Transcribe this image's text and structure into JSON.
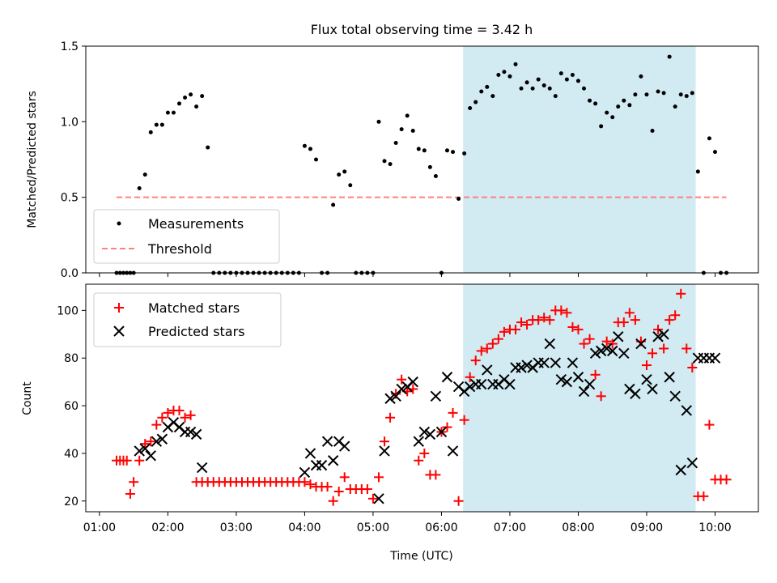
{
  "title": "Flux total observing time = 3.42 h",
  "colors": {
    "measurement": "#000000",
    "threshold": "#ff8080",
    "matched": "#ff0000",
    "predicted": "#000000",
    "shade": "#add8e6"
  },
  "top": {
    "ylabel": "Matched/Predicted stars",
    "yticks": [
      "0.0",
      "0.5",
      "1.0",
      "1.5"
    ],
    "legend": {
      "measurements": "Measurements",
      "threshold": "Threshold"
    }
  },
  "bottom": {
    "ylabel": "Count",
    "xlabel": "Time (UTC)",
    "yticks": [
      "20",
      "40",
      "60",
      "80",
      "100"
    ],
    "xticks": [
      "01:00",
      "02:00",
      "03:00",
      "04:00",
      "05:00",
      "06:00",
      "07:00",
      "08:00",
      "09:00",
      "10:00"
    ],
    "legend": {
      "matched": "Matched stars",
      "predicted": "Predicted stars"
    }
  },
  "chart_data": [
    {
      "type": "scatter",
      "title": "Flux total observing time = 3.42 h",
      "xlabel": "",
      "ylabel": "Matched/Predicted stars",
      "ylim": [
        0,
        1.5
      ],
      "xlim": [
        "00:48",
        "10:38"
      ],
      "shaded_region": [
        "06:19",
        "09:43"
      ],
      "threshold": 0.5,
      "threshold_x": [
        "01:15",
        "10:10"
      ],
      "legend_position": "lower-left",
      "series": [
        {
          "name": "Measurements",
          "x": [
            "01:15",
            "01:18",
            "01:21",
            "01:24",
            "01:27",
            "01:30",
            "01:35",
            "01:40",
            "01:45",
            "01:50",
            "01:55",
            "02:00",
            "02:05",
            "02:10",
            "02:15",
            "02:20",
            "02:25",
            "02:30",
            "02:35",
            "02:40",
            "02:45",
            "02:50",
            "02:55",
            "03:00",
            "03:05",
            "03:10",
            "03:15",
            "03:20",
            "03:25",
            "03:30",
            "03:35",
            "03:40",
            "03:45",
            "03:50",
            "03:55",
            "04:00",
            "04:05",
            "04:10",
            "04:15",
            "04:20",
            "04:25",
            "04:30",
            "04:35",
            "04:40",
            "04:45",
            "04:50",
            "04:55",
            "05:00",
            "05:05",
            "05:10",
            "05:15",
            "05:20",
            "05:25",
            "05:30",
            "05:35",
            "05:40",
            "05:45",
            "05:50",
            "05:55",
            "06:00",
            "06:05",
            "06:10",
            "06:15",
            "06:20",
            "06:25",
            "06:30",
            "06:35",
            "06:40",
            "06:45",
            "06:50",
            "06:55",
            "07:00",
            "07:05",
            "07:10",
            "07:15",
            "07:20",
            "07:25",
            "07:30",
            "07:35",
            "07:40",
            "07:45",
            "07:50",
            "07:55",
            "08:00",
            "08:05",
            "08:10",
            "08:15",
            "08:20",
            "08:25",
            "08:30",
            "08:35",
            "08:40",
            "08:45",
            "08:50",
            "08:55",
            "09:00",
            "09:05",
            "09:10",
            "09:15",
            "09:20",
            "09:25",
            "09:30",
            "09:35",
            "09:40",
            "09:45",
            "09:50",
            "09:55",
            "10:00",
            "10:05",
            "10:10"
          ],
          "y": [
            0,
            0,
            0,
            0,
            0,
            0,
            0.56,
            0.65,
            0.93,
            0.98,
            0.98,
            1.06,
            1.06,
            1.12,
            1.16,
            1.18,
            1.1,
            1.17,
            0.83,
            0,
            0,
            0,
            0,
            0,
            0,
            0,
            0,
            0,
            0,
            0,
            0,
            0,
            0,
            0,
            0,
            0.84,
            0.82,
            0.75,
            0,
            0,
            0.45,
            0.65,
            0.67,
            0.58,
            0,
            0,
            0,
            0,
            1.0,
            0.74,
            0.72,
            0.86,
            0.95,
            1.04,
            0.94,
            0.82,
            0.81,
            0.7,
            0.64,
            0,
            0.81,
            0.8,
            0.49,
            0.79,
            1.09,
            1.13,
            1.2,
            1.23,
            1.17,
            1.31,
            1.33,
            1.3,
            1.38,
            1.22,
            1.26,
            1.22,
            1.28,
            1.24,
            1.22,
            1.17,
            1.32,
            1.28,
            1.31,
            1.27,
            1.22,
            1.14,
            1.12,
            0.97,
            1.06,
            1.03,
            1.1,
            1.14,
            1.11,
            1.18,
            1.3,
            1.18,
            0.94,
            1.2,
            1.19,
            1.43,
            1.1,
            1.18,
            1.17,
            1.19,
            0.67,
            0,
            0.89,
            0.8,
            0,
            0
          ]
        }
      ]
    },
    {
      "type": "scatter",
      "xlabel": "Time (UTC)",
      "ylabel": "Count",
      "ylim": [
        15.5,
        111
      ],
      "xlim": [
        "00:48",
        "10:38"
      ],
      "shaded_region": [
        "06:19",
        "09:43"
      ],
      "legend_position": "upper-left",
      "series": [
        {
          "name": "Matched stars",
          "x": [
            "01:15",
            "01:18",
            "01:21",
            "01:24",
            "01:27",
            "01:30",
            "01:35",
            "01:40",
            "01:45",
            "01:50",
            "01:55",
            "02:00",
            "02:05",
            "02:10",
            "02:15",
            "02:20",
            "02:25",
            "02:30",
            "02:35",
            "02:40",
            "02:45",
            "02:50",
            "02:55",
            "03:00",
            "03:05",
            "03:10",
            "03:15",
            "03:20",
            "03:25",
            "03:30",
            "03:35",
            "03:40",
            "03:45",
            "03:50",
            "03:55",
            "04:00",
            "04:05",
            "04:10",
            "04:15",
            "04:20",
            "04:25",
            "04:30",
            "04:35",
            "04:40",
            "04:45",
            "04:50",
            "04:55",
            "05:00",
            "05:05",
            "05:10",
            "05:15",
            "05:20",
            "05:25",
            "05:30",
            "05:35",
            "05:40",
            "05:45",
            "05:50",
            "05:55",
            "06:00",
            "06:05",
            "06:10",
            "06:15",
            "06:20",
            "06:25",
            "06:30",
            "06:35",
            "06:40",
            "06:45",
            "06:50",
            "06:55",
            "07:00",
            "07:05",
            "07:10",
            "07:15",
            "07:20",
            "07:25",
            "07:30",
            "07:35",
            "07:40",
            "07:45",
            "07:50",
            "07:55",
            "08:00",
            "08:05",
            "08:10",
            "08:15",
            "08:20",
            "08:25",
            "08:30",
            "08:35",
            "08:40",
            "08:45",
            "08:50",
            "08:55",
            "09:00",
            "09:05",
            "09:10",
            "09:15",
            "09:20",
            "09:25",
            "09:30",
            "09:35",
            "09:40",
            "09:45",
            "09:50",
            "09:55",
            "10:00",
            "10:05",
            "10:10"
          ],
          "y": [
            37,
            37,
            37,
            37,
            23,
            28,
            37,
            44,
            45,
            52,
            55,
            57,
            58,
            58,
            55,
            56,
            28,
            28,
            28,
            28,
            28,
            28,
            28,
            28,
            28,
            28,
            28,
            28,
            28,
            28,
            28,
            28,
            28,
            28,
            28,
            28,
            27,
            26,
            26,
            26,
            20,
            24,
            30,
            25,
            25,
            25,
            25,
            21,
            30,
            45,
            55,
            65,
            71,
            66,
            67,
            37,
            40,
            31,
            31,
            49,
            51,
            57,
            20,
            54,
            72,
            79,
            83,
            84,
            86,
            88,
            91,
            92,
            92,
            95,
            94,
            96,
            96,
            97,
            96,
            100,
            100,
            99,
            93,
            92,
            86,
            88,
            73,
            64,
            87,
            86,
            95,
            95,
            99,
            96,
            87,
            77,
            82,
            92,
            84,
            96,
            98,
            107,
            84,
            76,
            22,
            22,
            52,
            29,
            29,
            29
          ]
        },
        {
          "name": "Predicted stars",
          "x": [
            "01:35",
            "01:40",
            "01:45",
            "01:50",
            "01:55",
            "02:00",
            "02:05",
            "02:10",
            "02:15",
            "02:20",
            "02:25",
            "02:30",
            "04:00",
            "04:05",
            "04:10",
            "04:15",
            "04:20",
            "04:25",
            "04:30",
            "04:35",
            "05:05",
            "05:10",
            "05:15",
            "05:20",
            "05:25",
            "05:30",
            "05:35",
            "05:40",
            "05:45",
            "05:50",
            "05:55",
            "06:00",
            "06:05",
            "06:10",
            "06:15",
            "06:20",
            "06:25",
            "06:30",
            "06:35",
            "06:40",
            "06:45",
            "06:50",
            "06:55",
            "07:00",
            "07:05",
            "07:10",
            "07:15",
            "07:20",
            "07:25",
            "07:30",
            "07:35",
            "07:40",
            "07:45",
            "07:50",
            "07:55",
            "08:00",
            "08:05",
            "08:10",
            "08:15",
            "08:20",
            "08:25",
            "08:30",
            "08:35",
            "08:40",
            "08:45",
            "08:50",
            "08:55",
            "09:00",
            "09:05",
            "09:10",
            "09:15",
            "09:20",
            "09:25",
            "09:30",
            "09:35",
            "09:40",
            "09:45",
            "09:50",
            "09:55",
            "10:00"
          ],
          "y": [
            41,
            42,
            39,
            45,
            46,
            51,
            53,
            51,
            49,
            49,
            48,
            34,
            32,
            40,
            35,
            35,
            45,
            37,
            45,
            43,
            21,
            41,
            63,
            64,
            67,
            68,
            70,
            45,
            49,
            48,
            64,
            49,
            72,
            41,
            68,
            66,
            68,
            69,
            69,
            75,
            69,
            69,
            71,
            69,
            76,
            76,
            77,
            76,
            78,
            78,
            86,
            78,
            71,
            70,
            78,
            72,
            66,
            69,
            82,
            83,
            84,
            83,
            89,
            82,
            67,
            65,
            86,
            71,
            67,
            89,
            90,
            72,
            64,
            33,
            58,
            36,
            80,
            80,
            80,
            80
          ]
        }
      ]
    }
  ]
}
